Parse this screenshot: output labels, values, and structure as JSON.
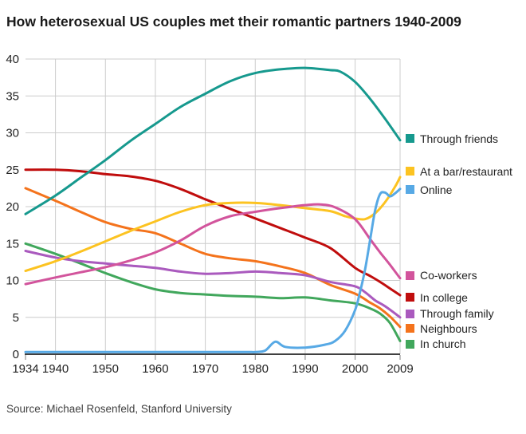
{
  "title": "How heterosexual US couples met their romantic partners 1940-2009",
  "source": "Source: Michael Rosenfeld, Stanford University",
  "chart_data": {
    "type": "line",
    "title": "How heterosexual US couples met their romantic partners 1940-2009",
    "xlabel": "",
    "ylabel": "",
    "x_ticks": [
      1934,
      1940,
      1950,
      1960,
      1970,
      1980,
      1990,
      2000,
      2009
    ],
    "y_ticks": [
      0,
      5,
      10,
      15,
      20,
      25,
      30,
      35,
      40
    ],
    "xlim": [
      1934,
      2009
    ],
    "ylim": [
      0,
      40
    ],
    "grid": true,
    "grid_color": "#cccccc",
    "axis_color": "#404040",
    "tick_color": "#808080",
    "label_color": "#222222",
    "legend_position": "right",
    "draw_order": [
      "In college",
      "Neighbours",
      "In church",
      "Through family",
      "Through friends",
      "At a bar/restaurant",
      "Co-workers",
      "Online"
    ],
    "series": [
      {
        "name": "Through friends",
        "color": "#16998e",
        "legend_value": 29.2,
        "points": [
          [
            1934,
            19.0
          ],
          [
            1940,
            21.5
          ],
          [
            1945,
            23.9
          ],
          [
            1950,
            26.3
          ],
          [
            1955,
            28.9
          ],
          [
            1960,
            31.2
          ],
          [
            1965,
            33.5
          ],
          [
            1970,
            35.3
          ],
          [
            1975,
            37.0
          ],
          [
            1980,
            38.1
          ],
          [
            1985,
            38.6
          ],
          [
            1990,
            38.8
          ],
          [
            1995,
            38.5
          ],
          [
            1997,
            38.3
          ],
          [
            2000,
            36.9
          ],
          [
            2003,
            34.6
          ],
          [
            2006,
            31.9
          ],
          [
            2009,
            29.0
          ]
        ]
      },
      {
        "name": "At a bar/restaurant",
        "color": "#fcc321",
        "legend_value": 24.8,
        "points": [
          [
            1934,
            11.3
          ],
          [
            1940,
            12.6
          ],
          [
            1945,
            13.9
          ],
          [
            1950,
            15.3
          ],
          [
            1955,
            16.7
          ],
          [
            1960,
            18.0
          ],
          [
            1965,
            19.3
          ],
          [
            1970,
            20.2
          ],
          [
            1975,
            20.5
          ],
          [
            1980,
            20.5
          ],
          [
            1985,
            20.2
          ],
          [
            1990,
            19.8
          ],
          [
            1995,
            19.4
          ],
          [
            1998,
            18.7
          ],
          [
            2000,
            18.4
          ],
          [
            2002,
            18.3
          ],
          [
            2004,
            19.1
          ],
          [
            2006,
            20.6
          ],
          [
            2008,
            22.7
          ],
          [
            2009,
            24.0
          ]
        ]
      },
      {
        "name": "Online",
        "color": "#57a9e5",
        "legend_value": 22.3,
        "points": [
          [
            1934,
            0.3
          ],
          [
            1940,
            0.3
          ],
          [
            1950,
            0.3
          ],
          [
            1960,
            0.3
          ],
          [
            1970,
            0.3
          ],
          [
            1978,
            0.3
          ],
          [
            1980,
            0.3
          ],
          [
            1982,
            0.5
          ],
          [
            1984,
            1.7
          ],
          [
            1986,
            1.0
          ],
          [
            1990,
            0.9
          ],
          [
            1994,
            1.3
          ],
          [
            1996,
            1.8
          ],
          [
            1998,
            3.2
          ],
          [
            2000,
            6.0
          ],
          [
            2001,
            8.5
          ],
          [
            2002,
            11.5
          ],
          [
            2003,
            15.5
          ],
          [
            2004,
            19.5
          ],
          [
            2005,
            21.7
          ],
          [
            2006,
            21.9
          ],
          [
            2007,
            21.4
          ],
          [
            2008,
            21.8
          ],
          [
            2009,
            22.4
          ]
        ]
      },
      {
        "name": "Co-workers",
        "color": "#d2549c",
        "legend_value": 10.7,
        "points": [
          [
            1934,
            9.5
          ],
          [
            1940,
            10.4
          ],
          [
            1945,
            11.1
          ],
          [
            1950,
            11.8
          ],
          [
            1955,
            12.7
          ],
          [
            1960,
            13.8
          ],
          [
            1965,
            15.4
          ],
          [
            1970,
            17.4
          ],
          [
            1975,
            18.7
          ],
          [
            1980,
            19.3
          ],
          [
            1985,
            19.8
          ],
          [
            1990,
            20.2
          ],
          [
            1993,
            20.3
          ],
          [
            1996,
            19.9
          ],
          [
            2000,
            18.3
          ],
          [
            2003,
            15.6
          ],
          [
            2005,
            13.8
          ],
          [
            2007,
            12.1
          ],
          [
            2009,
            10.3
          ]
        ]
      },
      {
        "name": "In college",
        "color": "#c00d0d",
        "legend_value": 7.7,
        "points": [
          [
            1934,
            25.0
          ],
          [
            1940,
            25.0
          ],
          [
            1945,
            24.8
          ],
          [
            1950,
            24.4
          ],
          [
            1955,
            24.1
          ],
          [
            1960,
            23.5
          ],
          [
            1965,
            22.4
          ],
          [
            1970,
            21.0
          ],
          [
            1975,
            19.7
          ],
          [
            1980,
            18.4
          ],
          [
            1985,
            17.1
          ],
          [
            1990,
            15.8
          ],
          [
            1995,
            14.4
          ],
          [
            2000,
            11.7
          ],
          [
            2003,
            10.6
          ],
          [
            2005,
            9.8
          ],
          [
            2007,
            8.9
          ],
          [
            2009,
            8.0
          ]
        ]
      },
      {
        "name": "Through family",
        "color": "#aa5abe",
        "legend_value": 5.5,
        "points": [
          [
            1934,
            14.0
          ],
          [
            1940,
            13.1
          ],
          [
            1945,
            12.6
          ],
          [
            1950,
            12.3
          ],
          [
            1955,
            12.0
          ],
          [
            1960,
            11.7
          ],
          [
            1965,
            11.2
          ],
          [
            1970,
            10.9
          ],
          [
            1975,
            11.0
          ],
          [
            1980,
            11.2
          ],
          [
            1985,
            11.0
          ],
          [
            1990,
            10.7
          ],
          [
            1995,
            9.8
          ],
          [
            2000,
            9.2
          ],
          [
            2002,
            8.4
          ],
          [
            2004,
            7.3
          ],
          [
            2006,
            6.5
          ],
          [
            2009,
            5.0
          ]
        ]
      },
      {
        "name": "Neighbours",
        "color": "#f4731c",
        "legend_value": 3.5,
        "points": [
          [
            1934,
            22.5
          ],
          [
            1940,
            20.8
          ],
          [
            1945,
            19.3
          ],
          [
            1950,
            17.9
          ],
          [
            1955,
            17.0
          ],
          [
            1960,
            16.4
          ],
          [
            1965,
            15.0
          ],
          [
            1970,
            13.6
          ],
          [
            1975,
            13.0
          ],
          [
            1980,
            12.6
          ],
          [
            1985,
            11.9
          ],
          [
            1990,
            11.0
          ],
          [
            1995,
            9.4
          ],
          [
            2000,
            8.2
          ],
          [
            2003,
            7.0
          ],
          [
            2005,
            6.2
          ],
          [
            2007,
            5.1
          ],
          [
            2009,
            3.7
          ]
        ]
      },
      {
        "name": "In church",
        "color": "#41a75c",
        "legend_value": 1.4,
        "points": [
          [
            1934,
            15.0
          ],
          [
            1940,
            13.6
          ],
          [
            1945,
            12.3
          ],
          [
            1950,
            11.0
          ],
          [
            1955,
            9.8
          ],
          [
            1960,
            8.8
          ],
          [
            1965,
            8.3
          ],
          [
            1970,
            8.1
          ],
          [
            1975,
            7.9
          ],
          [
            1980,
            7.8
          ],
          [
            1985,
            7.6
          ],
          [
            1990,
            7.7
          ],
          [
            1995,
            7.3
          ],
          [
            2000,
            6.9
          ],
          [
            2003,
            6.2
          ],
          [
            2005,
            5.5
          ],
          [
            2007,
            4.2
          ],
          [
            2009,
            1.8
          ]
        ]
      }
    ]
  }
}
